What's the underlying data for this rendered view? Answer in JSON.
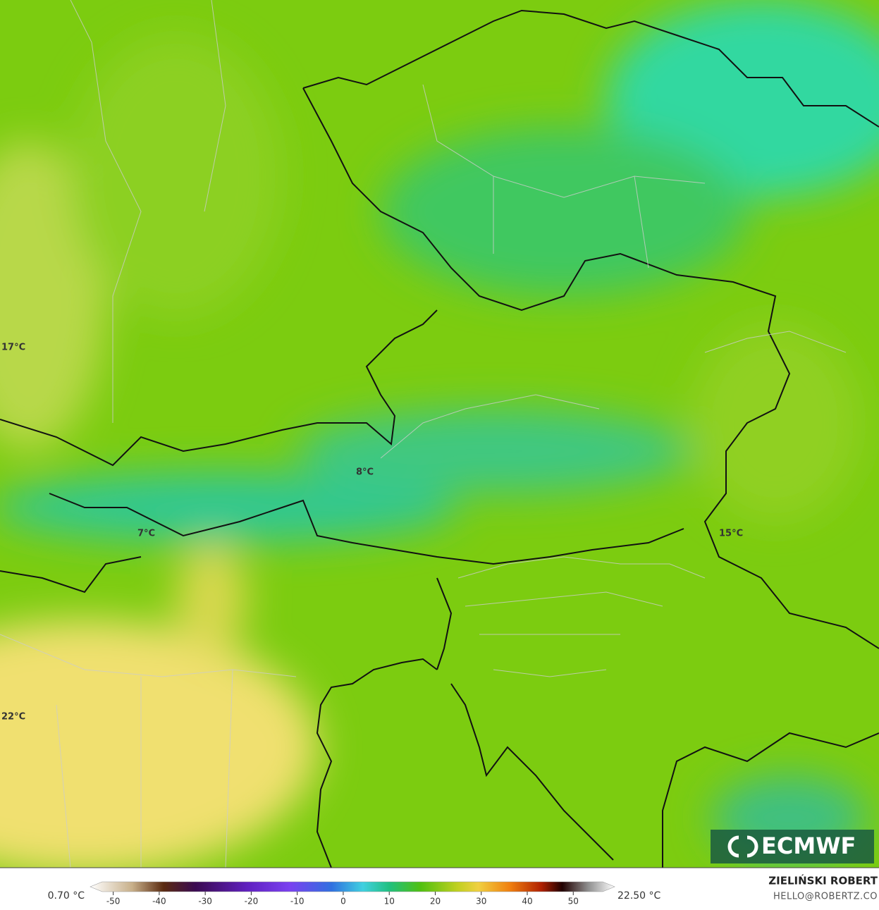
{
  "map_labels": [
    "17°C",
    "8°C",
    "7°C",
    "15°C",
    "22°C"
  ],
  "colorbar": {
    "min_label": "0.70 °C",
    "max_label": "22.50 °C",
    "lim": [
      -55,
      59
    ],
    "ticks": [
      -50,
      -40,
      -30,
      -20,
      -10,
      0,
      10,
      20,
      30,
      40,
      50
    ]
  },
  "author": "ZIELIŃSKI ROBERT",
  "contact": "HELLO@ROBERTZ.CO",
  "logo": "ECMWF"
}
